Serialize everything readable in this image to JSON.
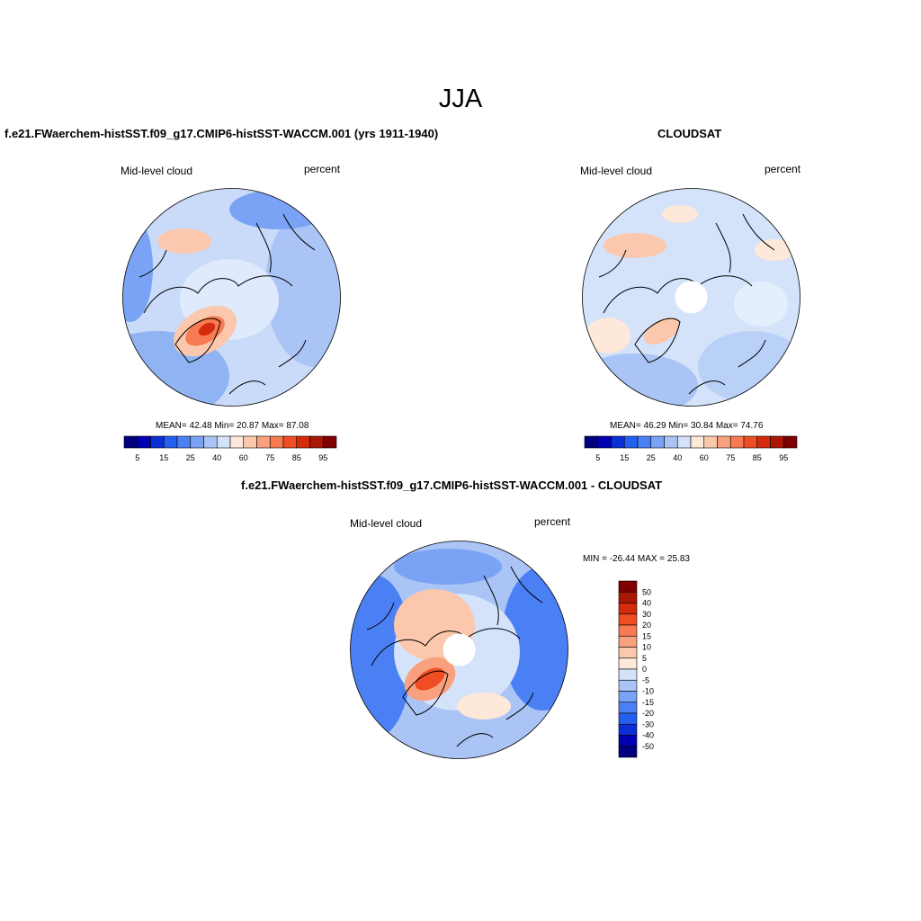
{
  "main_title": "JJA",
  "panels": [
    {
      "title": "f.e21.FWaerchem-histSST.f09_g17.CMIP6-histSST-WACCM.001 (yrs 1911-1940)",
      "left_label": "Mid-level cloud",
      "right_label": "percent",
      "stats": "MEAN=  42.48  Min=  20.87  Max=  87.08",
      "has_pole_hole": false
    },
    {
      "title": "CLOUDSAT",
      "left_label": "Mid-level cloud",
      "right_label": "percent",
      "stats": "MEAN=  46.29  Min=  30.84  Max=  74.76",
      "has_pole_hole": true
    },
    {
      "title": "f.e21.FWaerchem-histSST.f09_g17.CMIP6-histSST-WACCM.001 - CLOUDSAT",
      "left_label": "Mid-level cloud",
      "right_label": "percent",
      "stats": "MIN = -26.44 MAX =  25.83",
      "has_pole_hole": true
    }
  ],
  "colorbar_abs": {
    "colors": [
      "#00007f",
      "#0000b2",
      "#0a2fd6",
      "#245ff0",
      "#4b80f5",
      "#7aa3f5",
      "#aac4f5",
      "#d4e3fa",
      "#fde8da",
      "#fbc8ad",
      "#f9a17e",
      "#f77a52",
      "#ef4d23",
      "#d42b0c",
      "#aa1805",
      "#7f0000"
    ],
    "labels": [
      "5",
      "15",
      "25",
      "40",
      "60",
      "75",
      "85",
      "95"
    ]
  },
  "colorbar_diff": {
    "colors": [
      "#00007f",
      "#0000b2",
      "#0a2fd6",
      "#245ff0",
      "#4b80f5",
      "#7aa3f5",
      "#aac4f5",
      "#d4e3fa",
      "#fde8da",
      "#fbc8ad",
      "#f9a17e",
      "#f77a52",
      "#ef4d23",
      "#d42b0c",
      "#aa1805",
      "#7f0000"
    ],
    "labels": [
      "50",
      "40",
      "30",
      "20",
      "15",
      "10",
      "5",
      "0",
      "-5",
      "-10",
      "-15",
      "-20",
      "-30",
      "-40",
      "-50"
    ]
  }
}
